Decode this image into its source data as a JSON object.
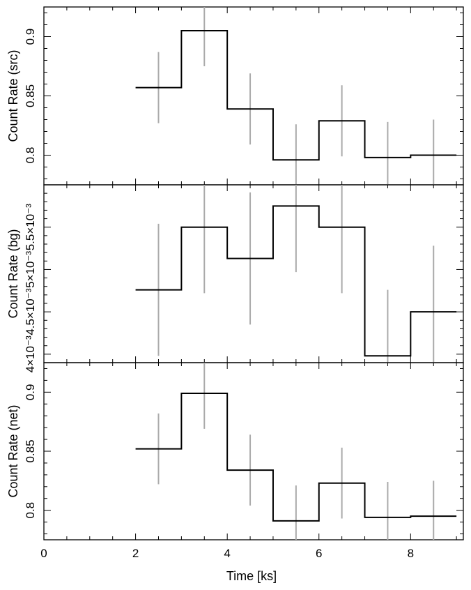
{
  "chart_data": {
    "type": "line",
    "x_bin_edges": [
      2,
      3,
      4,
      5,
      6,
      7,
      8,
      9
    ],
    "xlim": [
      0,
      9.15
    ],
    "xlabel": "Time [ks]",
    "x_ticks": [
      0,
      2,
      4,
      6,
      8
    ],
    "x_tick_labels": [
      "0",
      "2",
      "4",
      "6",
      "8"
    ],
    "panels": [
      {
        "ylabel": "Count Rate (src)",
        "ylim": [
          0.775,
          0.925
        ],
        "y_ticks": [
          0.8,
          0.85,
          0.9
        ],
        "y_tick_labels": [
          "0.8",
          "0.85",
          "0.9"
        ],
        "y_minor_step": 0.01,
        "values": [
          0.857,
          0.905,
          0.839,
          0.796,
          0.829,
          0.798,
          0.8
        ],
        "error": 0.03
      },
      {
        "ylabel": "Count Rate (bg)",
        "ylim": [
          0.0039,
          0.006
        ],
        "y_ticks": [
          0.004,
          0.0045,
          0.005,
          0.0055
        ],
        "y_tick_labels": [
          "4×10⁻³",
          "4.5×10⁻³",
          "5×10⁻³",
          "5.5×10⁻³"
        ],
        "y_minor_step": 0.0001,
        "values": [
          0.00476,
          0.0055,
          0.00513,
          0.00575,
          0.0055,
          0.00398,
          0.0045
        ],
        "error": 0.00078
      },
      {
        "ylabel": "Count Rate (net)",
        "ylim": [
          0.775,
          0.925
        ],
        "y_ticks": [
          0.8,
          0.85,
          0.9
        ],
        "y_tick_labels": [
          "0.8",
          "0.85",
          "0.9"
        ],
        "y_minor_step": 0.01,
        "values": [
          0.852,
          0.899,
          0.834,
          0.791,
          0.823,
          0.794,
          0.795
        ],
        "error": 0.03
      }
    ]
  }
}
